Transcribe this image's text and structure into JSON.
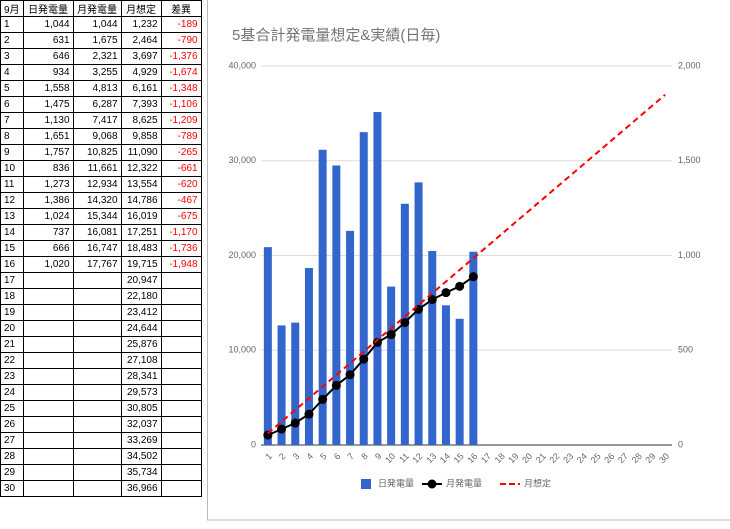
{
  "table": {
    "header": [
      "9月",
      "日発電量",
      "月発電量",
      "月想定",
      "差異"
    ],
    "negative_color": "#ff0000",
    "rows": [
      [
        "1",
        "1,044",
        "1,044",
        "1,232",
        "-189"
      ],
      [
        "2",
        "631",
        "1,675",
        "2,464",
        "-790"
      ],
      [
        "3",
        "646",
        "2,321",
        "3,697",
        "-1,376"
      ],
      [
        "4",
        "934",
        "3,255",
        "4,929",
        "-1,674"
      ],
      [
        "5",
        "1,558",
        "4,813",
        "6,161",
        "-1,348"
      ],
      [
        "6",
        "1,475",
        "6,287",
        "7,393",
        "-1,106"
      ],
      [
        "7",
        "1,130",
        "7,417",
        "8,625",
        "-1,209"
      ],
      [
        "8",
        "1,651",
        "9,068",
        "9,858",
        "-789"
      ],
      [
        "9",
        "1,757",
        "10,825",
        "11,090",
        "-265"
      ],
      [
        "10",
        "836",
        "11,661",
        "12,322",
        "-661"
      ],
      [
        "11",
        "1,273",
        "12,934",
        "13,554",
        "-620"
      ],
      [
        "12",
        "1,386",
        "14,320",
        "14,786",
        "-467"
      ],
      [
        "13",
        "1,024",
        "15,344",
        "16,019",
        "-675"
      ],
      [
        "14",
        "737",
        "16,081",
        "17,251",
        "-1,170"
      ],
      [
        "15",
        "666",
        "16,747",
        "18,483",
        "-1,736"
      ],
      [
        "16",
        "1,020",
        "17,767",
        "19,715",
        "-1,948"
      ],
      [
        "17",
        null,
        null,
        "20,947",
        null
      ],
      [
        "18",
        null,
        null,
        "22,180",
        null
      ],
      [
        "19",
        null,
        null,
        "23,412",
        null
      ],
      [
        "20",
        null,
        null,
        "24,644",
        null
      ],
      [
        "21",
        null,
        null,
        "25,876",
        null
      ],
      [
        "22",
        null,
        null,
        "27,108",
        null
      ],
      [
        "23",
        null,
        null,
        "28,341",
        null
      ],
      [
        "24",
        null,
        null,
        "29,573",
        null
      ],
      [
        "25",
        null,
        null,
        "30,805",
        null
      ],
      [
        "26",
        null,
        null,
        "32,037",
        null
      ],
      [
        "27",
        null,
        null,
        "33,269",
        null
      ],
      [
        "28",
        null,
        null,
        "34,502",
        null
      ],
      [
        "29",
        null,
        null,
        "35,734",
        null
      ],
      [
        "30",
        null,
        null,
        "36,966",
        null
      ]
    ]
  },
  "chart_data": {
    "type": "bar",
    "title": "5基合計発電量想定&実績(日毎)",
    "categories": [
      "1",
      "2",
      "3",
      "4",
      "5",
      "6",
      "7",
      "8",
      "9",
      "10",
      "11",
      "12",
      "13",
      "14",
      "15",
      "16",
      "17",
      "18",
      "19",
      "20",
      "21",
      "22",
      "23",
      "24",
      "25",
      "26",
      "27",
      "28",
      "29",
      "30"
    ],
    "series": [
      {
        "name": "日発電量",
        "type": "bar",
        "axis": "y2",
        "color": "#3366cc",
        "values": [
          1044,
          631,
          646,
          934,
          1558,
          1475,
          1130,
          1651,
          1757,
          836,
          1273,
          1386,
          1024,
          737,
          666,
          1020,
          null,
          null,
          null,
          null,
          null,
          null,
          null,
          null,
          null,
          null,
          null,
          null,
          null,
          null
        ]
      },
      {
        "name": "月発電量",
        "type": "line",
        "axis": "y",
        "color": "#000000",
        "markers": true,
        "values": [
          1044,
          1675,
          2321,
          3255,
          4813,
          6287,
          7417,
          9068,
          10825,
          11661,
          12934,
          14320,
          15344,
          16081,
          16747,
          17767,
          null,
          null,
          null,
          null,
          null,
          null,
          null,
          null,
          null,
          null,
          null,
          null,
          null,
          null
        ]
      },
      {
        "name": "月想定",
        "type": "line",
        "axis": "y",
        "color": "#ff0000",
        "dashed": true,
        "values": [
          1232,
          2464,
          3697,
          4929,
          6161,
          7393,
          8625,
          9858,
          11090,
          12322,
          13554,
          14786,
          16019,
          17251,
          18483,
          19715,
          20947,
          22180,
          23412,
          24644,
          25876,
          27108,
          28341,
          29573,
          30805,
          32037,
          33269,
          34502,
          35734,
          36966
        ]
      }
    ],
    "ylim": [
      0,
      40000
    ],
    "yticks": [
      0,
      {
        "value": 10000,
        "label": "10,000"
      },
      {
        "value": 20000,
        "label": "20,000"
      },
      {
        "value": 30000,
        "label": "30,000"
      },
      {
        "value": 40000,
        "label": "40,000"
      }
    ],
    "y2lim": [
      0,
      2000
    ],
    "y2ticks": [
      0,
      500,
      {
        "value": 1000,
        "label": "1,000"
      },
      {
        "value": 1500,
        "label": "1,500"
      },
      {
        "value": 2000,
        "label": "2,000"
      }
    ],
    "grid": true,
    "legend": "bottom"
  }
}
